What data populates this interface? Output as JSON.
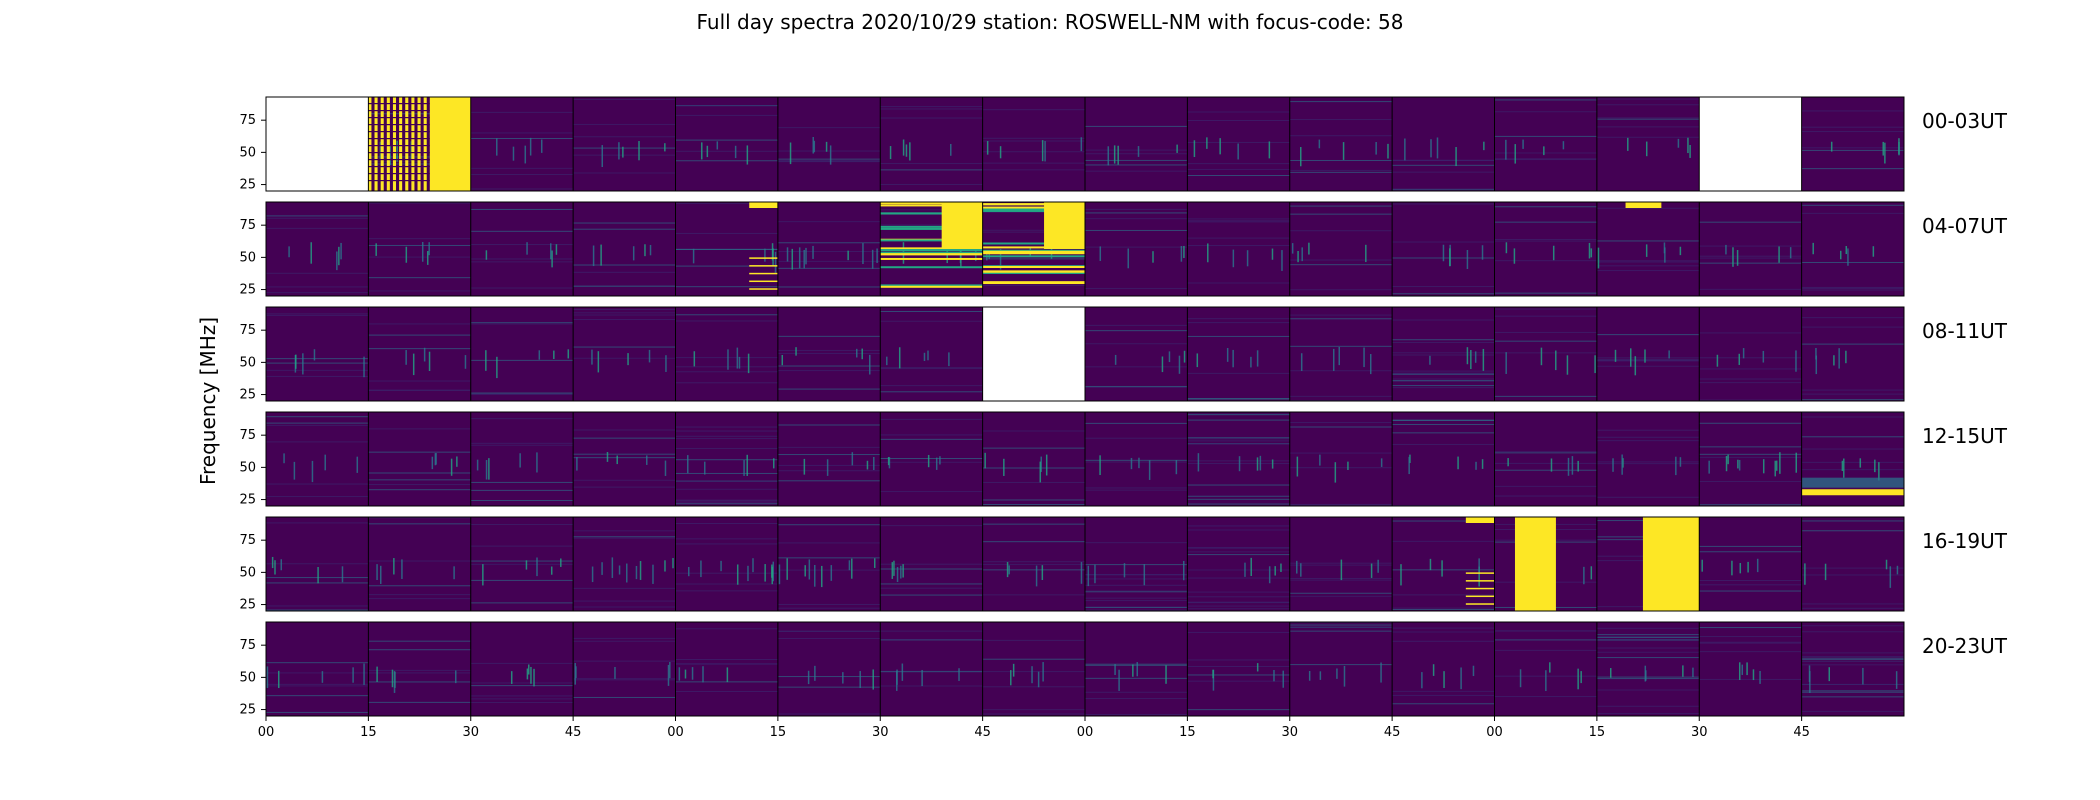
{
  "title": "Full day spectra 2020/10/29 station: ROSWELL-NM with focus-code: 58",
  "colors": {
    "background": "#440154",
    "low": "#3b2a72",
    "mid": "#2a788e",
    "high": "#22a884",
    "saturated": "#fde725",
    "axis": "#000000"
  },
  "chart_data": {
    "type": "heatmap",
    "colormap": "viridis",
    "title": "Full day spectra 2020/10/29 station: ROSWELL-NM with focus-code: 58",
    "ylabel": "Frequency [MHz]",
    "xlabel": "",
    "ylim": [
      20,
      93
    ],
    "yticks": [
      25,
      50,
      75
    ],
    "xtick_labels": [
      "00",
      "15",
      "30",
      "45",
      "00",
      "15",
      "30",
      "45",
      "00",
      "15",
      "30",
      "45",
      "00",
      "15",
      "30",
      "45"
    ],
    "segments_per_row": 16,
    "segment_minutes": 15,
    "row_labels": [
      "00-03UT",
      "04-07UT",
      "08-11UT",
      "12-15UT",
      "16-19UT",
      "20-23UT"
    ],
    "segments": [
      [
        "empty",
        "saturated-bands",
        "quiet",
        "quiet",
        "quiet",
        "quiet",
        "quiet",
        "quiet",
        "quiet",
        "quiet",
        "quiet",
        "quiet",
        "quiet",
        "quiet",
        "empty",
        "quiet"
      ],
      [
        "quiet",
        "quiet",
        "quiet",
        "quiet",
        "burst-right",
        "active",
        "strong",
        "strong",
        "quiet",
        "quiet",
        "quiet",
        "quiet",
        "quiet",
        "burst-top",
        "quiet",
        "quiet"
      ],
      [
        "quiet",
        "quiet",
        "quiet",
        "quiet",
        "quiet",
        "quiet",
        "quiet",
        "empty",
        "quiet",
        "quiet",
        "quiet",
        "noisy",
        "quiet",
        "quiet",
        "quiet",
        "quiet"
      ],
      [
        "quiet",
        "quiet",
        "quiet",
        "quiet",
        "noisy",
        "quiet",
        "quiet",
        "quiet",
        "quiet",
        "noisy",
        "quiet",
        "quiet",
        "quiet",
        "quiet",
        "active",
        "bright-band"
      ],
      [
        "quiet",
        "quiet",
        "quiet",
        "active",
        "active",
        "active",
        "quiet",
        "quiet",
        "noisy",
        "noisy",
        "quiet",
        "burst-right",
        "saturated-mid",
        "saturated-right",
        "quiet",
        "quiet"
      ],
      [
        "quiet",
        "quiet",
        "quiet",
        "quiet",
        "quiet",
        "quiet",
        "quiet",
        "quiet",
        "quiet",
        "quiet",
        "quiet",
        "quiet",
        "quiet",
        "noisy",
        "quiet",
        "noisy"
      ]
    ]
  }
}
